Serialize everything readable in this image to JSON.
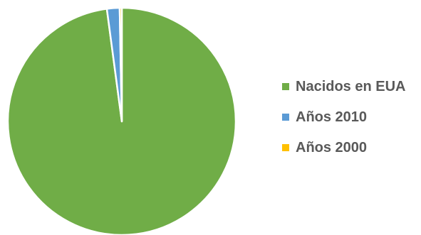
{
  "chart_data": {
    "type": "pie",
    "title": "",
    "start_angle_deg": 0,
    "direction": "clockwise",
    "legend_position": "right",
    "slices": [
      {
        "label": "Nacidos en EUA",
        "value": 97.9,
        "color": "#70AD47"
      },
      {
        "label": "Años 2010",
        "value": 1.8,
        "color": "#5B9BD5"
      },
      {
        "label": "Años 2000",
        "value": 0.3,
        "color": "#FFC000"
      }
    ]
  }
}
